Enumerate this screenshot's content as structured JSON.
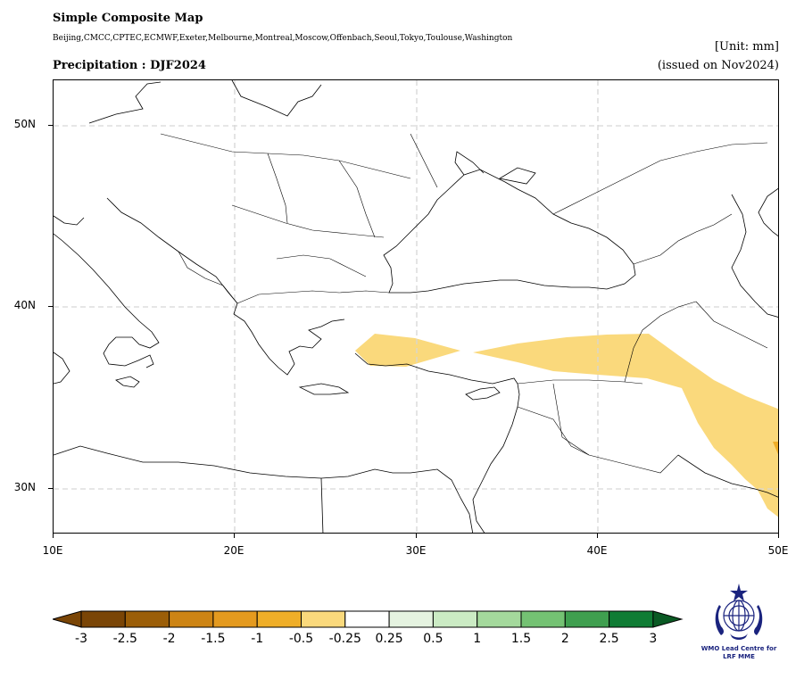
{
  "header": {
    "title": "Simple Composite Map",
    "models": "Beijing,CMCC,CPTEC,ECMWF,Exeter,Melbourne,Montreal,Moscow,Offenbach,Seoul,Tokyo,Toulouse,Washington",
    "subtitle": "Precipitation : DJF2024",
    "unit": "[Unit: mm]",
    "issued": "(issued on Nov2024)"
  },
  "map": {
    "lon_range": [
      10,
      50
    ],
    "lat_range": [
      27.5,
      52.5
    ],
    "x_ticks": [
      {
        "lon": 10,
        "label": "10E"
      },
      {
        "lon": 20,
        "label": "20E"
      },
      {
        "lon": 30,
        "label": "30E"
      },
      {
        "lon": 40,
        "label": "40E"
      },
      {
        "lon": 50,
        "label": "50E"
      }
    ],
    "y_ticks": [
      {
        "lat": 50,
        "label": "50N"
      },
      {
        "lat": 40,
        "label": "40N"
      },
      {
        "lat": 30,
        "label": "30N"
      }
    ],
    "grid": true,
    "anomaly_regions": [
      {
        "class": "-0.5 to -0.25",
        "color": "#fad97c",
        "area": "Aegean coast of Turkey to Anatolia and Iraq/Iran (Zagros) band"
      }
    ]
  },
  "colorbar": {
    "colors": [
      "#7a4506",
      "#9b5e08",
      "#cd8414",
      "#e49a1f",
      "#efae28",
      "#fad97c",
      "#ffffff",
      "#e5f3e0",
      "#cbebc4",
      "#a4d99c",
      "#74c273",
      "#3f9f4f",
      "#0f7c34",
      "#0a5a24"
    ],
    "labels": [
      "-3",
      "-2.5",
      "-2",
      "-1.5",
      "-1",
      "-0.5",
      "-0.25",
      "0.25",
      "0.5",
      "1",
      "1.5",
      "2",
      "2.5",
      "3"
    ]
  },
  "logo": {
    "line1": "WMO Lead Centre for",
    "line2": "LRF MME",
    "icon": "wmo-emblem-icon"
  }
}
